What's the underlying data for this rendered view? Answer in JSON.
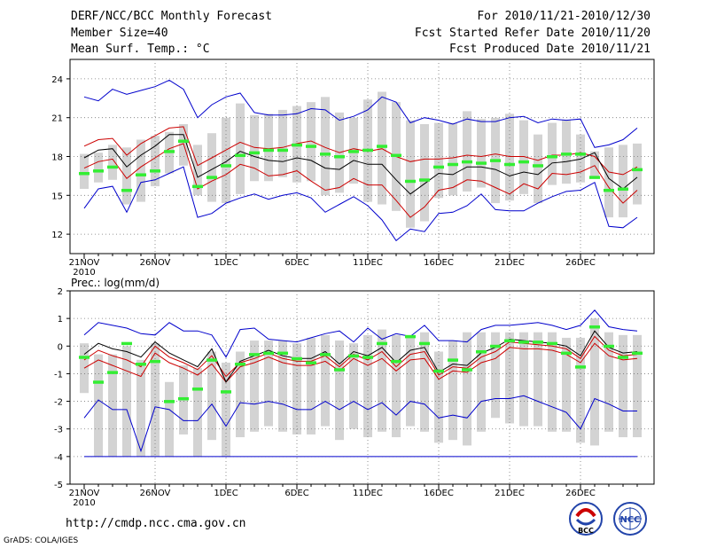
{
  "header": {
    "title": "DERF/NCC/BCC Monthly Forecast",
    "member_size": "Member Size=40",
    "variable": "Mean Surf. Temp.: °C",
    "period": "For 2010/11/21-2010/12/30",
    "started": "Fcst Started Refer Date 2010/11/20",
    "produced": "Fcst Produced Date 2010/11/21"
  },
  "footer": {
    "url": "http://cmdp.ncc.cma.gov.cn",
    "credit": "GrADS: COLA/IGES",
    "logo1_text": "BCC",
    "logo2_text": "NCC"
  },
  "colors": {
    "envelope": "#0000cc",
    "spread": "#cc0000",
    "mean": "#000000",
    "member_median": "#33ee33",
    "box": "#d3d3d3"
  },
  "chart_data": [
    {
      "type": "line",
      "title": "Mean Surf. Temp.: °C",
      "ylim": [
        10.5,
        25.5
      ],
      "yticks": [
        12,
        15,
        18,
        21,
        24
      ],
      "xticks": [
        {
          "day": 0,
          "label": "21NOV"
        },
        {
          "day": 5,
          "label": "26NOV"
        },
        {
          "day": 10,
          "label": "1DEC"
        },
        {
          "day": 15,
          "label": "6DEC"
        },
        {
          "day": 20,
          "label": "11DEC"
        },
        {
          "day": 25,
          "label": "16DEC"
        },
        {
          "day": 30,
          "label": "21DEC"
        },
        {
          "day": 35,
          "label": "26DEC"
        }
      ],
      "year_label": "2010",
      "series": [
        {
          "name": "max",
          "values": [
            22.6,
            22.3,
            23.2,
            22.8,
            23.1,
            23.4,
            23.9,
            23.2,
            21.0,
            22.0,
            22.6,
            22.9,
            21.4,
            21.2,
            21.2,
            21.3,
            21.7,
            21.6,
            20.8,
            21.1,
            21.6,
            22.6,
            22.2,
            20.6,
            21.0,
            20.8,
            20.5,
            20.9,
            20.7,
            20.7,
            21.0,
            21.1,
            20.6,
            20.9,
            20.8,
            20.9,
            18.7,
            18.9,
            19.3,
            20.2
          ]
        },
        {
          "name": "upper",
          "values": [
            18.8,
            19.3,
            19.4,
            18.1,
            19.0,
            19.6,
            20.2,
            20.3,
            17.3,
            17.9,
            18.5,
            19.1,
            18.7,
            18.6,
            18.7,
            19.0,
            19.2,
            18.7,
            18.3,
            18.6,
            18.4,
            18.6,
            18.0,
            17.6,
            17.8,
            17.8,
            17.9,
            18.1,
            18.0,
            18.2,
            18.0,
            18.0,
            17.7,
            18.1,
            18.1,
            18.3,
            18.0,
            16.8,
            16.6,
            17.2
          ]
        },
        {
          "name": "mean",
          "values": [
            17.9,
            18.5,
            18.6,
            17.2,
            18.1,
            18.8,
            19.7,
            19.7,
            16.4,
            17.0,
            17.6,
            18.4,
            18.0,
            17.7,
            17.6,
            17.9,
            17.7,
            17.1,
            17.0,
            17.7,
            17.4,
            17.4,
            16.2,
            15.1,
            15.9,
            16.7,
            16.6,
            17.2,
            17.2,
            17.0,
            16.5,
            16.8,
            16.6,
            17.5,
            17.6,
            17.8,
            18.3,
            16.3,
            15.5,
            16.4
          ]
        },
        {
          "name": "lower",
          "values": [
            17.1,
            17.6,
            17.8,
            16.3,
            17.2,
            17.9,
            18.6,
            19.0,
            15.5,
            16.1,
            16.6,
            17.4,
            17.1,
            16.5,
            16.6,
            16.9,
            16.1,
            15.4,
            15.6,
            16.3,
            15.8,
            15.8,
            14.6,
            13.3,
            14.1,
            15.4,
            15.6,
            16.2,
            16.1,
            15.6,
            15.1,
            15.9,
            15.5,
            16.7,
            16.6,
            16.8,
            17.3,
            15.6,
            14.4,
            15.4
          ]
        },
        {
          "name": "min",
          "values": [
            14.0,
            15.5,
            15.7,
            13.7,
            16.0,
            16.2,
            16.7,
            17.2,
            13.3,
            13.6,
            14.4,
            14.8,
            15.1,
            14.7,
            15.0,
            15.2,
            14.8,
            13.7,
            14.3,
            14.9,
            14.2,
            13.1,
            11.5,
            12.4,
            12.2,
            13.6,
            13.7,
            14.2,
            15.1,
            13.9,
            13.8,
            13.8,
            14.4,
            14.9,
            15.3,
            15.4,
            16.0,
            12.6,
            12.5,
            13.3
          ]
        },
        {
          "name": "member_median",
          "values": [
            16.7,
            16.9,
            17.2,
            15.4,
            16.6,
            16.9,
            18.4,
            19.2,
            15.7,
            16.4,
            17.3,
            18.1,
            18.3,
            18.5,
            18.5,
            18.9,
            18.8,
            18.2,
            18.0,
            18.4,
            18.5,
            18.8,
            18.1,
            16.1,
            16.2,
            17.2,
            17.4,
            17.6,
            17.5,
            17.7,
            17.4,
            17.6,
            17.3,
            18.0,
            18.2,
            18.2,
            16.4,
            15.4,
            15.5,
            17.0
          ]
        },
        {
          "name": "box_high",
          "values": [
            18.2,
            18.3,
            18.9,
            18.7,
            19.3,
            19.6,
            19.9,
            20.5,
            18.9,
            19.8,
            21.0,
            22.1,
            21.2,
            21.3,
            21.6,
            21.9,
            22.2,
            22.6,
            21.4,
            21.0,
            22.4,
            23.0,
            22.2,
            20.8,
            20.5,
            20.6,
            20.6,
            21.5,
            20.9,
            21.0,
            21.3,
            20.8,
            19.7,
            20.6,
            20.8,
            19.7,
            18.4,
            18.7,
            18.9,
            19.0
          ]
        },
        {
          "name": "box_low",
          "values": [
            15.5,
            16.0,
            16.2,
            14.3,
            14.5,
            15.7,
            16.7,
            17.3,
            15.0,
            14.5,
            14.4,
            15.1,
            16.1,
            16.1,
            16.4,
            16.0,
            16.1,
            15.0,
            15.2,
            15.9,
            14.5,
            14.3,
            13.8,
            12.5,
            13.0,
            14.8,
            15.0,
            15.3,
            15.6,
            14.4,
            14.6,
            15.1,
            14.4,
            15.8,
            15.9,
            16.0,
            16.3,
            13.3,
            13.3,
            14.3
          ]
        }
      ]
    },
    {
      "type": "line",
      "title": "Prec.: log(mm/d)",
      "ylim": [
        -5,
        2
      ],
      "yticks": [
        -5,
        -4,
        -3,
        -2,
        -1,
        0,
        1,
        2
      ],
      "xticks": [
        {
          "day": 0,
          "label": "21NOV"
        },
        {
          "day": 5,
          "label": "26NOV"
        },
        {
          "day": 10,
          "label": "1DEC"
        },
        {
          "day": 15,
          "label": "6DEC"
        },
        {
          "day": 20,
          "label": "11DEC"
        },
        {
          "day": 25,
          "label": "16DEC"
        },
        {
          "day": 30,
          "label": "21DEC"
        },
        {
          "day": 35,
          "label": "26DEC"
        }
      ],
      "year_label": "2010",
      "series": [
        {
          "name": "max",
          "values": [
            0.4,
            0.85,
            0.75,
            0.65,
            0.45,
            0.4,
            0.85,
            0.55,
            0.55,
            0.4,
            -0.4,
            0.6,
            0.65,
            0.25,
            0.2,
            0.15,
            0.3,
            0.45,
            0.55,
            0.15,
            0.65,
            0.25,
            0.45,
            0.35,
            0.75,
            0.2,
            0.2,
            0.15,
            0.6,
            0.75,
            0.75,
            0.8,
            0.85,
            0.75,
            0.6,
            0.75,
            1.3,
            0.7,
            0.6,
            0.55
          ]
        },
        {
          "name": "mean",
          "values": [
            -0.3,
            0.1,
            -0.1,
            -0.2,
            -0.4,
            0.15,
            -0.25,
            -0.5,
            -0.75,
            -0.1,
            -1.3,
            -0.55,
            -0.35,
            -0.15,
            -0.35,
            -0.45,
            -0.45,
            -0.2,
            -0.65,
            -0.2,
            -0.35,
            -0.05,
            -0.6,
            -0.15,
            -0.05,
            -0.95,
            -0.65,
            -0.7,
            -0.25,
            -0.05,
            0.25,
            0.2,
            0.15,
            0.1,
            0.0,
            -0.35,
            0.55,
            -0.05,
            -0.25,
            -0.2
          ]
        },
        {
          "name": "upper",
          "values": [
            -0.5,
            -0.15,
            -0.35,
            -0.5,
            -0.75,
            0.0,
            -0.4,
            -0.6,
            -0.85,
            -0.35,
            -1.1,
            -0.6,
            -0.45,
            -0.25,
            -0.45,
            -0.55,
            -0.55,
            -0.35,
            -0.75,
            -0.3,
            -0.5,
            -0.2,
            -0.75,
            -0.3,
            -0.2,
            -1.05,
            -0.75,
            -0.8,
            -0.4,
            -0.2,
            0.15,
            0.1,
            0.05,
            0.0,
            -0.1,
            -0.45,
            0.35,
            -0.15,
            -0.35,
            -0.3
          ]
        },
        {
          "name": "lower",
          "values": [
            -0.8,
            -0.5,
            -0.7,
            -0.9,
            -1.1,
            -0.25,
            -0.6,
            -0.8,
            -1.05,
            -0.65,
            -1.3,
            -0.75,
            -0.6,
            -0.4,
            -0.6,
            -0.7,
            -0.7,
            -0.55,
            -0.9,
            -0.45,
            -0.7,
            -0.45,
            -0.9,
            -0.5,
            -0.45,
            -1.2,
            -0.9,
            -0.95,
            -0.6,
            -0.45,
            -0.05,
            -0.1,
            -0.1,
            -0.15,
            -0.3,
            -0.6,
            0.1,
            -0.35,
            -0.5,
            -0.45
          ]
        },
        {
          "name": "min",
          "values": [
            -2.6,
            -1.95,
            -2.3,
            -2.3,
            -3.8,
            -2.2,
            -2.3,
            -2.7,
            -2.7,
            -2.1,
            -2.9,
            -2.05,
            -2.1,
            -2.0,
            -2.1,
            -2.3,
            -2.3,
            -2.0,
            -2.3,
            -2.0,
            -2.3,
            -2.05,
            -2.5,
            -2.0,
            -2.1,
            -2.6,
            -2.5,
            -2.6,
            -2.0,
            -1.9,
            -1.9,
            -1.8,
            -2.0,
            -2.2,
            -2.4,
            -3.0,
            -1.9,
            -2.1,
            -2.35,
            -2.35
          ]
        },
        {
          "name": "member_median",
          "values": [
            -0.4,
            -1.3,
            -0.95,
            0.1,
            -0.65,
            -0.55,
            -2.0,
            -1.9,
            -1.55,
            -0.5,
            -1.65,
            -0.65,
            -0.3,
            -0.25,
            -0.25,
            -0.45,
            -0.6,
            -0.3,
            -0.85,
            -0.35,
            -0.4,
            0.1,
            -0.55,
            0.35,
            0.1,
            -0.9,
            -0.5,
            -0.85,
            -0.2,
            0.0,
            0.2,
            0.15,
            0.15,
            0.1,
            -0.25,
            -0.75,
            0.7,
            0.0,
            -0.4,
            -0.25
          ]
        },
        {
          "name": "box_high",
          "values": [
            0.1,
            -0.3,
            -0.3,
            0.0,
            -0.5,
            0.1,
            -1.3,
            -0.7,
            -0.8,
            -0.2,
            -0.6,
            -0.2,
            0.2,
            0.2,
            0.2,
            0.1,
            0.3,
            0.4,
            0.2,
            0.1,
            0.4,
            0.6,
            0.4,
            0.4,
            0.5,
            -0.2,
            0.2,
            0.5,
            0.5,
            0.5,
            0.5,
            0.5,
            0.5,
            0.5,
            0.3,
            0.3,
            1.0,
            0.5,
            0.4,
            0.4
          ]
        },
        {
          "name": "box_low",
          "values": [
            -1.7,
            -4.0,
            -4.0,
            -4.0,
            -4.0,
            -4.0,
            -4.0,
            -3.2,
            -4.0,
            -3.4,
            -4.0,
            -3.3,
            -3.1,
            -2.9,
            -3.1,
            -3.2,
            -3.2,
            -2.9,
            -3.4,
            -3.0,
            -3.3,
            -3.1,
            -3.3,
            -2.9,
            -3.1,
            -3.5,
            -3.4,
            -3.6,
            -3.1,
            -2.6,
            -2.8,
            -2.9,
            -2.9,
            -3.1,
            -3.1,
            -3.5,
            -3.6,
            -3.1,
            -3.3,
            -3.3
          ]
        }
      ],
      "baseline": -4
    }
  ]
}
